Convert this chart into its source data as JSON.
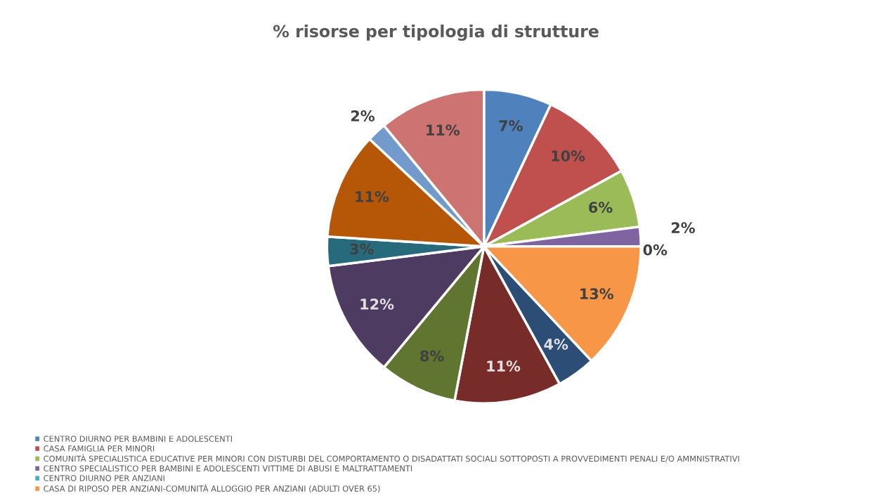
{
  "chart_data": {
    "type": "pie",
    "title": "% risorse per tipologia di strutture",
    "categories": [
      "CENTRO DIURNO PER BAMBINI E ADOLESCENTI",
      "CASA FAMIGLIA PER MINORI",
      "COMUNITÀ SPECIALISTICA EDUCATIVE PER MINORI CON DISTURBI DEL COMPORTAMENTO O DISADATTATI SOCIALI SOTTOPOSTI A PROVVEDIMENTI PENALI E/O AMMNISTRATIVI",
      "CENTRO SPECIALISTICO PER BAMBINI E ADOLESCENTI VITTIME DI ABUSI E MALTRATTAMENTI",
      "CENTRO DIURNO PER ANZIANI",
      "CASA DI RIPOSO PER ANZIANI-COMUNITÀ ALLOGGIO PER ANZIANI (ADULTI OVER 65)",
      null,
      null,
      null,
      null,
      null,
      null,
      null,
      null
    ],
    "values": [
      7,
      10,
      6,
      2,
      0,
      13,
      4,
      11,
      8,
      12,
      3,
      11,
      2,
      11
    ],
    "colors": [
      "#4f81bd",
      "#c0504d",
      "#9bbb59",
      "#8064a2",
      "#4bacc6",
      "#f79646",
      "#2c4d75",
      "#772c2a",
      "#5f7530",
      "#4d3b62",
      "#276a7c",
      "#b65708",
      "#729aca",
      "#cd7371"
    ],
    "value_labels": [
      "7%",
      "10%",
      "6%",
      "2%",
      "0%",
      "13%",
      "4%",
      "11%",
      "8%",
      "12%",
      "3%",
      "11%",
      "2%",
      "11%"
    ],
    "legend": "bottom left"
  }
}
